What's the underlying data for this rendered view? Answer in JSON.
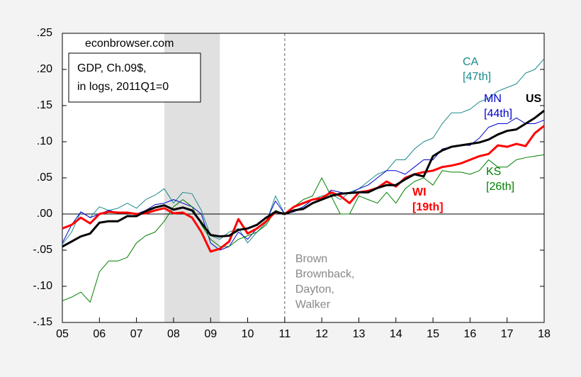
{
  "chart_data": {
    "type": "line",
    "source": "econbrowser.com",
    "box_text": [
      "GDP, Ch.09$,",
      "in logs, 2011Q1=0"
    ],
    "vline": 2011,
    "vline_text": [
      "Brown",
      "Brownback,",
      "Dayton,",
      "Walker"
    ],
    "shade": [
      2007.75,
      2009.25
    ],
    "x": [
      2005,
      2005.25,
      2005.5,
      2005.75,
      2006,
      2006.25,
      2006.5,
      2006.75,
      2007,
      2007.25,
      2007.5,
      2007.75,
      2008,
      2008.25,
      2008.5,
      2008.75,
      2009,
      2009.25,
      2009.5,
      2009.75,
      2010,
      2010.25,
      2010.5,
      2010.75,
      2011,
      2011.25,
      2011.5,
      2011.75,
      2012,
      2012.25,
      2012.5,
      2012.75,
      2013,
      2013.25,
      2013.5,
      2013.75,
      2014,
      2014.25,
      2014.5,
      2014.75,
      2015,
      2015.25,
      2015.5,
      2015.75,
      2016,
      2016.25,
      2016.5,
      2016.75,
      2017,
      2017.25,
      2017.5,
      2017.75,
      2018
    ],
    "xlim": [
      2005,
      2018
    ],
    "xticks": [
      {
        "value": 2005,
        "label": "05"
      },
      {
        "value": 2006,
        "label": "06"
      },
      {
        "value": 2007,
        "label": "07"
      },
      {
        "value": 2008,
        "label": "08"
      },
      {
        "value": 2009,
        "label": "09"
      },
      {
        "value": 2010,
        "label": "10"
      },
      {
        "value": 2011,
        "label": "11"
      },
      {
        "value": 2012,
        "label": "12"
      },
      {
        "value": 2013,
        "label": "13"
      },
      {
        "value": 2014,
        "label": "14"
      },
      {
        "value": 2015,
        "label": "15"
      },
      {
        "value": 2016,
        "label": "16"
      },
      {
        "value": 2017,
        "label": "17"
      },
      {
        "value": 2018,
        "label": "18"
      }
    ],
    "ylim": [
      -0.15,
      0.25
    ],
    "yticks": [
      {
        "value": 0.25,
        "label": ".25"
      },
      {
        "value": 0.2,
        "label": ".20"
      },
      {
        "value": 0.15,
        "label": ".15"
      },
      {
        "value": 0.1,
        "label": ".10"
      },
      {
        "value": 0.05,
        "label": ".05"
      },
      {
        "value": 0,
        "label": ".00"
      },
      {
        "value": -0.05,
        "label": "-.05"
      },
      {
        "value": -0.1,
        "label": "-.10"
      },
      {
        "value": -0.15,
        "label": "-.15"
      }
    ],
    "series": [
      {
        "name": "CA",
        "rank": "[47th]",
        "color": "#1a8a8a",
        "line_width": 1,
        "values": [
          -0.042,
          -0.025,
          0.003,
          -0.005,
          0.01,
          0.005,
          0.008,
          0.015,
          0.008,
          0.02,
          0.026,
          0.035,
          0.015,
          0.03,
          0.028,
          0.005,
          -0.03,
          -0.035,
          -0.025,
          -0.02,
          -0.04,
          -0.025,
          -0.012,
          0.025,
          0.0,
          0.005,
          0.01,
          0.02,
          0.025,
          0.028,
          0.02,
          0.03,
          0.035,
          0.045,
          0.055,
          0.06,
          0.075,
          0.075,
          0.09,
          0.1,
          0.105,
          0.125,
          0.14,
          0.14,
          0.145,
          0.155,
          0.16,
          0.17,
          0.175,
          0.18,
          0.195,
          0.2,
          0.215
        ]
      },
      {
        "name": "MN",
        "rank": "[44th]",
        "color": "#0000cc",
        "line_width": 1,
        "values": [
          -0.04,
          -0.015,
          0.003,
          -0.005,
          0.0,
          0.005,
          0.002,
          0.003,
          0.0,
          0.005,
          0.013,
          0.015,
          0.02,
          0.015,
          0.01,
          0.0,
          -0.04,
          -0.05,
          -0.045,
          -0.025,
          -0.035,
          -0.02,
          -0.01,
          0.018,
          0.0,
          0.003,
          0.01,
          0.02,
          0.02,
          0.033,
          0.03,
          0.028,
          0.035,
          0.04,
          0.05,
          0.06,
          0.06,
          0.055,
          0.065,
          0.075,
          0.075,
          0.09,
          0.093,
          0.095,
          0.095,
          0.105,
          0.12,
          0.125,
          0.125,
          0.133,
          0.125,
          0.125,
          0.13
        ]
      },
      {
        "name": "KS",
        "rank": "[26th]",
        "color": "#008000",
        "line_width": 1,
        "values": [
          -0.12,
          -0.115,
          -0.108,
          -0.122,
          -0.08,
          -0.065,
          -0.065,
          -0.06,
          -0.04,
          -0.03,
          -0.025,
          -0.01,
          0.01,
          0.02,
          0.01,
          -0.015,
          -0.035,
          -0.045,
          -0.045,
          -0.035,
          -0.03,
          -0.025,
          -0.015,
          0.005,
          0.0,
          0.01,
          0.02,
          0.025,
          0.05,
          0.025,
          0.0,
          0.0,
          0.025,
          0.02,
          0.015,
          0.03,
          0.015,
          0.035,
          0.045,
          0.05,
          0.04,
          0.06,
          0.058,
          0.058,
          0.055,
          0.06,
          0.075,
          0.065,
          0.065,
          0.075,
          0.078,
          0.08,
          0.082
        ]
      },
      {
        "name": "WI",
        "rank": "[19th]",
        "color": "#ff0000",
        "line_width": 3,
        "values": [
          -0.02,
          -0.015,
          -0.005,
          -0.013,
          0.0,
          0.003,
          0.002,
          0.002,
          0.0,
          0.001,
          0.005,
          0.008,
          0.001,
          0.002,
          -0.005,
          -0.025,
          -0.052,
          -0.048,
          -0.038,
          -0.007,
          -0.027,
          -0.02,
          -0.01,
          0.003,
          0.0,
          0.01,
          0.015,
          0.02,
          0.022,
          0.03,
          0.025,
          0.015,
          0.03,
          0.032,
          0.036,
          0.045,
          0.038,
          0.05,
          0.055,
          0.058,
          0.06,
          0.065,
          0.067,
          0.07,
          0.075,
          0.08,
          0.083,
          0.095,
          0.093,
          0.097,
          0.094,
          0.112,
          0.122
        ]
      },
      {
        "name": "US",
        "color": "#000000",
        "line_width": 3,
        "values": [
          -0.045,
          -0.038,
          -0.031,
          -0.027,
          -0.012,
          -0.01,
          -0.01,
          -0.003,
          -0.003,
          0.004,
          0.009,
          0.012,
          0.006,
          0.009,
          0.005,
          -0.012,
          -0.029,
          -0.031,
          -0.03,
          -0.022,
          -0.02,
          -0.015,
          -0.005,
          0.003,
          0.0,
          0.005,
          0.007,
          0.015,
          0.02,
          0.025,
          0.028,
          0.029,
          0.03,
          0.03,
          0.036,
          0.04,
          0.04,
          0.048,
          0.055,
          0.052,
          0.08,
          0.088,
          0.093,
          0.095,
          0.097,
          0.099,
          0.103,
          0.11,
          0.115,
          0.117,
          0.125,
          0.133,
          0.143
        ]
      }
    ]
  }
}
